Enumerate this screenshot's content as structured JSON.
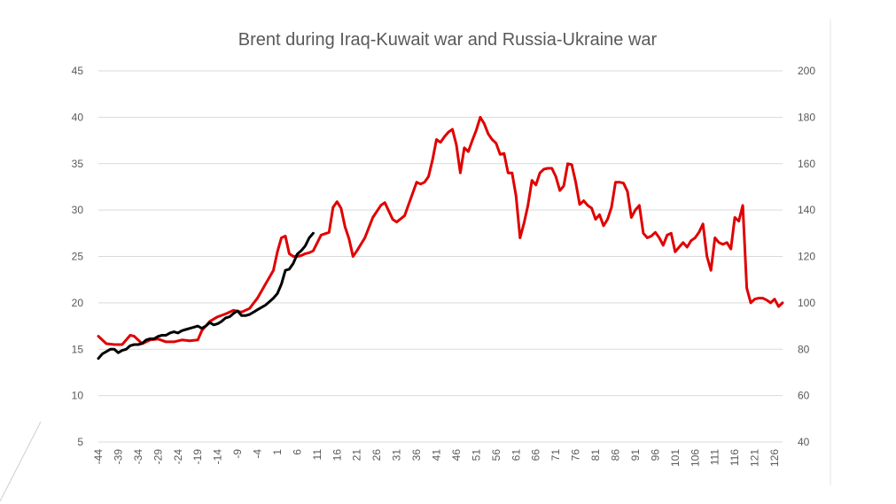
{
  "colors": {
    "series_red": "#e00000",
    "series_black": "#000000",
    "grid": "#d9d9d9",
    "text": "#595959"
  },
  "chart_data": {
    "type": "line",
    "title": "Brent during Iraq-Kuwait war and Russia-Ukraine war",
    "xlabel": "",
    "ylabel": "",
    "x_range": [
      -44,
      128
    ],
    "x_ticks": [
      -44,
      -39,
      -34,
      -29,
      -24,
      -19,
      -14,
      -9,
      -4,
      1,
      6,
      11,
      16,
      21,
      26,
      31,
      36,
      41,
      46,
      51,
      56,
      61,
      66,
      71,
      76,
      81,
      86,
      91,
      96,
      101,
      106,
      111,
      116,
      121,
      126
    ],
    "y_left": {
      "ticks": [
        5,
        10,
        15,
        20,
        25,
        30,
        35,
        40,
        45
      ],
      "range": [
        5,
        45
      ]
    },
    "y_right": {
      "ticks": [
        40,
        60,
        80,
        100,
        120,
        140,
        160,
        180,
        200
      ],
      "range": [
        40,
        200
      ]
    },
    "grid": true,
    "legend": "none",
    "series": [
      {
        "axis": "left",
        "color": "#e00000",
        "x": [
          -44,
          -42,
          -40,
          -38,
          -36,
          -35,
          -33,
          -31,
          -29,
          -27,
          -25,
          -23,
          -21,
          -19,
          -18,
          -16,
          -14,
          -12,
          -10,
          -8,
          -6,
          -4,
          -2,
          0,
          1,
          2,
          3,
          4,
          5,
          6,
          7,
          8,
          9,
          10,
          12,
          14,
          15,
          16,
          17,
          18,
          19,
          20,
          21,
          23,
          25,
          27,
          28,
          30,
          31,
          33,
          34,
          36,
          37,
          38,
          39,
          40,
          41,
          42,
          43,
          44,
          45,
          46,
          47,
          48,
          49,
          50,
          51,
          52,
          53,
          54,
          55,
          56,
          57,
          58,
          59,
          60,
          61,
          62,
          63,
          64,
          65,
          66,
          67,
          68,
          69,
          70,
          71,
          72,
          73,
          74,
          75,
          76,
          77,
          78,
          79,
          80,
          81,
          82,
          83,
          84,
          85,
          86,
          87,
          88,
          89,
          90,
          91,
          92,
          93,
          94,
          95,
          96,
          97,
          98,
          99,
          100,
          101,
          102,
          103,
          104,
          105,
          106,
          107,
          108,
          109,
          110,
          111,
          112,
          113,
          114,
          115,
          116,
          117,
          118,
          119,
          120,
          121,
          122,
          123,
          124,
          125,
          126,
          127,
          128
        ],
        "y": [
          16.4,
          15.6,
          15.5,
          15.5,
          16.5,
          16.4,
          15.6,
          16.0,
          16.1,
          15.8,
          15.8,
          16.0,
          15.9,
          16.0,
          17.0,
          18.0,
          18.5,
          18.8,
          19.2,
          19.0,
          19.4,
          20.5,
          22.0,
          23.5,
          25.5,
          27.0,
          27.2,
          25.3,
          25.0,
          25.0,
          25.1,
          25.3,
          25.4,
          25.6,
          27.3,
          27.6,
          30.3,
          30.9,
          30.2,
          28.2,
          26.9,
          25.0,
          25.6,
          27.0,
          29.2,
          30.5,
          30.8,
          29.0,
          28.7,
          29.4,
          30.6,
          33.0,
          32.8,
          33.0,
          33.6,
          35.4,
          37.6,
          37.3,
          37.9,
          38.4,
          38.7,
          37.0,
          34.0,
          36.7,
          36.3,
          37.5,
          38.6,
          40.0,
          39.3,
          38.2,
          37.6,
          37.2,
          36.0,
          36.1,
          34.0,
          34.0,
          31.5,
          27.0,
          28.6,
          30.5,
          33.2,
          32.7,
          34.0,
          34.4,
          34.5,
          34.5,
          33.6,
          32.1,
          32.6,
          35.0,
          34.9,
          33.0,
          30.6,
          31.0,
          30.5,
          30.2,
          29.0,
          29.5,
          28.3,
          29.0,
          30.3,
          33.0,
          33.0,
          32.9,
          32.0,
          29.2,
          30.0,
          30.5,
          27.5,
          27.0,
          27.2,
          27.6,
          27.0,
          26.2,
          27.3,
          27.5,
          25.5,
          26.0,
          26.5,
          26.0,
          26.7,
          27.0,
          27.6,
          28.5,
          25.0,
          23.5,
          27.0,
          26.5,
          26.3,
          26.5,
          25.8,
          29.2,
          28.8,
          30.5,
          21.6,
          20.0,
          20.4,
          20.5,
          20.5,
          20.3,
          20.0,
          20.4,
          19.6,
          20.0
        ]
      },
      {
        "axis": "right",
        "color": "#000000",
        "x": [
          -44,
          -43,
          -42,
          -41,
          -40,
          -39,
          -38,
          -37,
          -36,
          -35,
          -34,
          -33,
          -32,
          -31,
          -30,
          -29,
          -28,
          -27,
          -26,
          -25,
          -24,
          -23,
          -22,
          -21,
          -20,
          -19,
          -18,
          -17,
          -16,
          -15,
          -14,
          -13,
          -12,
          -11,
          -10,
          -9,
          -8,
          -7,
          -6,
          -5,
          -4,
          -3,
          -2,
          -1,
          0,
          1,
          2,
          3,
          4,
          5,
          6,
          7,
          8,
          9,
          10
        ],
        "y": [
          76.0,
          78.0,
          79.0,
          80.0,
          80.0,
          78.5,
          79.5,
          80.0,
          81.5,
          82.0,
          82.0,
          82.5,
          84.0,
          84.5,
          84.5,
          85.5,
          86.0,
          86.0,
          87.0,
          87.5,
          87.0,
          88.0,
          88.5,
          89.0,
          89.5,
          90.0,
          89.0,
          90.0,
          91.5,
          90.5,
          91.0,
          92.0,
          93.5,
          94.0,
          95.5,
          96.5,
          94.5,
          94.5,
          95.0,
          96.0,
          97.0,
          98.0,
          99.0,
          100.5,
          102.0,
          104.0,
          108.0,
          114.0,
          114.5,
          117.0,
          121.0,
          122.5,
          124.5,
          128.0,
          130.0
        ]
      }
    ]
  }
}
